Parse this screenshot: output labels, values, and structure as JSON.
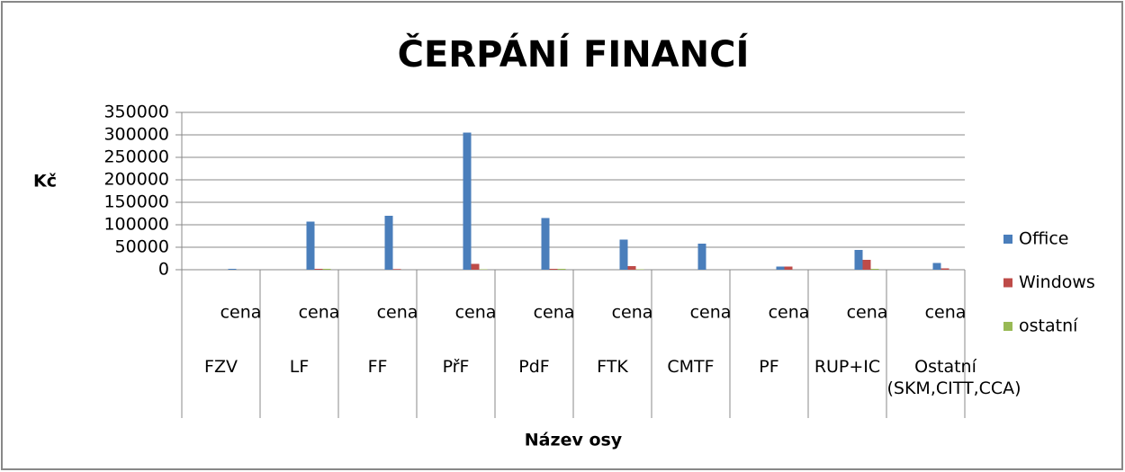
{
  "chart_data": {
    "type": "bar",
    "title": "ČERPÁNÍ  FINANCÍ",
    "y_label": "Kč",
    "x_label": "Název osy",
    "categories": [
      "cena",
      "cena",
      "cena",
      "cena",
      "cena",
      "cena",
      "cena",
      "cena",
      "cena",
      "cena"
    ],
    "category_groups": [
      "FZV",
      "LF",
      "FF",
      "PřF",
      "PdF",
      "FTK",
      "CMTF",
      "PF",
      "RUP+IC",
      "Ostatní (SKM,CITT,CCA)"
    ],
    "series": [
      {
        "name": "Office",
        "color": "#4a7ebb",
        "values": [
          2000,
          107000,
          120000,
          305000,
          115000,
          67000,
          58000,
          7000,
          44000,
          15000
        ]
      },
      {
        "name": "Windows",
        "color": "#be4b48",
        "values": [
          0,
          2000,
          1500,
          13000,
          2000,
          8000,
          0,
          7000,
          22000,
          3000
        ]
      },
      {
        "name": "ostatní",
        "color": "#98b954",
        "values": [
          0,
          2000,
          0,
          1000,
          2000,
          1000,
          0,
          0,
          2000,
          0
        ]
      }
    ],
    "ylim": [
      0,
      350000
    ],
    "yticks": [
      0,
      50000,
      100000,
      150000,
      200000,
      250000,
      300000,
      350000
    ],
    "grid": true,
    "legend": "right"
  }
}
